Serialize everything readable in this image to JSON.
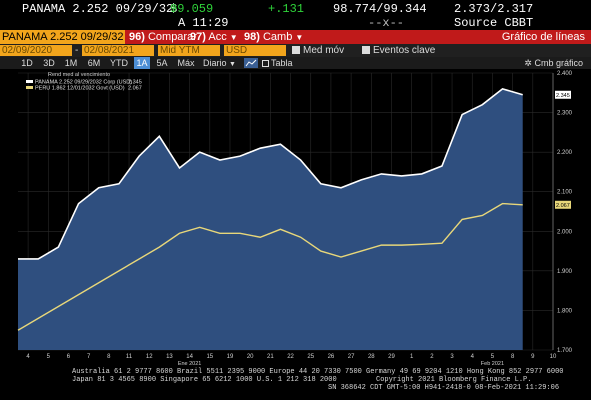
{
  "header": {
    "security": "PANAMA 2.252 09/29/32",
    "price_prefix": "$",
    "price_arrow": "↑",
    "price": "99.059",
    "change": "+.131",
    "bid_ask": "98.774/99.344",
    "yields": "2.373/2.317",
    "time": "A 11:29",
    "x_marker": "--x--",
    "source": "Source CBBT"
  },
  "toolbar": {
    "ticker": "PANAMA 2.252 09/29/32",
    "compare_num": "96)",
    "compare_label": "Comparar",
    "acc_num": "97)",
    "acc_label": "Acc",
    "camb_num": "98)",
    "camb_label": "Camb",
    "title": "Gráfico de líneas"
  },
  "options": {
    "start_date": "02/09/2020",
    "end_date": "02/08/2021",
    "field": "Mid YTM",
    "currency": "USD",
    "moving_avg": "Med móv",
    "key_events": "Eventos clave"
  },
  "periods": {
    "items": [
      "1D",
      "3D",
      "1M",
      "6M",
      "YTD",
      "1A",
      "5A",
      "Máx"
    ],
    "active": "1A",
    "frequency": "Diario",
    "table": "Tabla",
    "chart_menu": "Cmb gráfico"
  },
  "colors": {
    "accent_orange": "#f2a51c",
    "toolbar_red": "#c01a1a",
    "up_green": "#2fd33a",
    "series1": "#ffffff",
    "series1_fill": "#2f4f7f",
    "series2": "#e8d77a"
  },
  "chart_data": {
    "type": "area",
    "legend_title": "Rend med al vencimiento",
    "y_ticks": [
      "2.400",
      "2.300",
      "2.200",
      "2.100",
      "2.000",
      "1.900",
      "1.800",
      "1.700"
    ],
    "ylim": [
      1.7,
      2.4
    ],
    "x_ticks": [
      "4",
      "5",
      "6",
      "7",
      "8",
      "11",
      "12",
      "13",
      "14",
      "15",
      "19",
      "20",
      "21",
      "22",
      "25",
      "26",
      "27",
      "28",
      "29",
      "1",
      "2",
      "3",
      "4",
      "5",
      "8",
      "9",
      "10"
    ],
    "x_month_labels": [
      {
        "text": "Ene 2021",
        "tick_index": 8
      },
      {
        "text": "Feb 2021",
        "tick_index": 23
      }
    ],
    "series": [
      {
        "name": "PANAMA 2.252 09/29/2032 Corp (USD)",
        "last_label": "2.345",
        "legend_value": "2.345",
        "values": [
          1.93,
          1.93,
          1.96,
          2.07,
          2.11,
          2.12,
          2.19,
          2.24,
          2.16,
          2.2,
          2.18,
          2.19,
          2.21,
          2.22,
          2.18,
          2.12,
          2.11,
          2.13,
          2.145,
          2.14,
          2.145,
          2.165,
          2.295,
          2.32,
          2.36,
          2.345
        ]
      },
      {
        "name": "PERU 1.862 12/01/2032 Govt (USD)",
        "last_label": "2.067",
        "legend_value": "2.067",
        "values": [
          1.75,
          1.78,
          1.81,
          1.84,
          1.87,
          1.9,
          1.93,
          1.96,
          1.995,
          2.01,
          1.995,
          1.995,
          1.985,
          2.005,
          1.985,
          1.95,
          1.935,
          1.95,
          1.965,
          1.965,
          1.967,
          1.97,
          2.03,
          2.04,
          2.07,
          2.067
        ]
      }
    ]
  },
  "footer": {
    "line1": "Australia 61 2 9777 8600 Brazil 5511 2395 9000 Europe 44 20 7330 7500 Germany 49 69 9204 1210 Hong Kong 852 2977 6000",
    "line2_left": "Japan 81 3 4565 8900      Singapore 65 6212 1000      U.S. 1 212 318 2000",
    "line2_right": "Copyright 2021 Bloomberg Finance L.P.",
    "line3": "SN 368642 CDT  GMT-5:00 H941-2418-0 08-Feb-2021 11:29:06"
  }
}
